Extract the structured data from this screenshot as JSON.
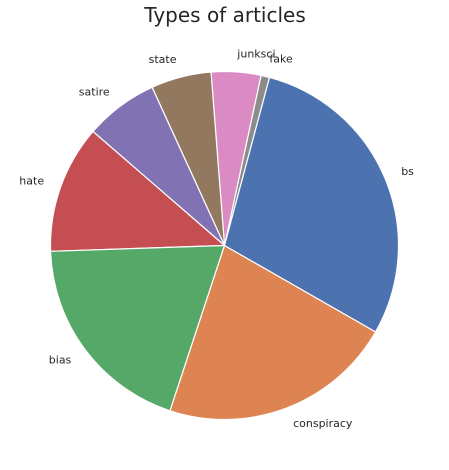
{
  "chart_data": {
    "type": "pie",
    "title": "Types of articles",
    "start_angle": 75,
    "direction": "counterclockwise",
    "slices": [
      {
        "label": "fake",
        "value": 0.8,
        "color": "#8c8c8c"
      },
      {
        "label": "junksci",
        "value": 4.6,
        "color": "#da8bc3"
      },
      {
        "label": "state",
        "value": 5.6,
        "color": "#937860"
      },
      {
        "label": "satire",
        "value": 6.8,
        "color": "#8172b3"
      },
      {
        "label": "hate",
        "value": 11.9,
        "color": "#c44e52"
      },
      {
        "label": "bias",
        "value": 19.4,
        "color": "#55a868"
      },
      {
        "label": "conspiracy",
        "value": 21.8,
        "color": "#dd8452"
      },
      {
        "label": "bs",
        "value": 29.1,
        "color": "#4c72b0"
      }
    ]
  }
}
